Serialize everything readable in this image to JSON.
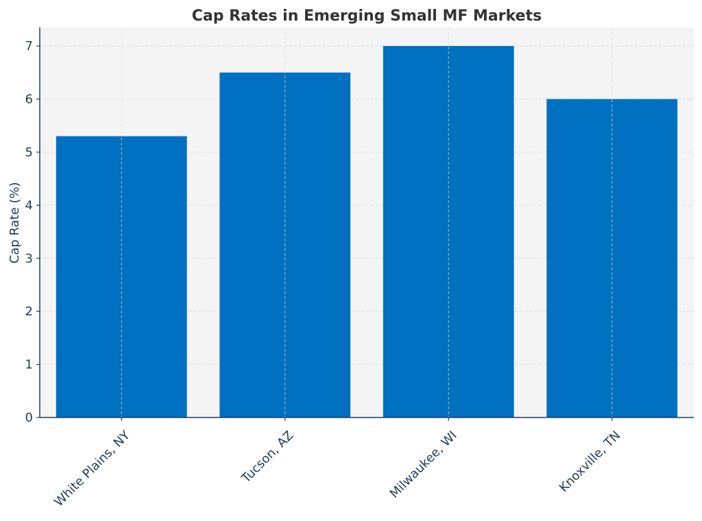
{
  "chart_data": {
    "type": "bar",
    "title": "Cap Rates in Emerging Small MF Markets",
    "xlabel": "",
    "ylabel": "Cap Rate (%)",
    "categories": [
      "White Plains, NY",
      "Tucson, AZ",
      "Milwaukee, WI",
      "Knoxville, TN"
    ],
    "values": [
      5.3,
      6.5,
      7.0,
      6.0
    ],
    "ylim": [
      0,
      7.35
    ],
    "yticks": [
      0,
      1,
      2,
      3,
      4,
      5,
      6,
      7
    ],
    "grid": true,
    "legend": "none"
  },
  "colors": {
    "bar": "#0070c0",
    "plot_background": "#f4f4f4",
    "axis": "#1f3b5b",
    "grid": "#d9d9d9",
    "title": "#333333"
  }
}
